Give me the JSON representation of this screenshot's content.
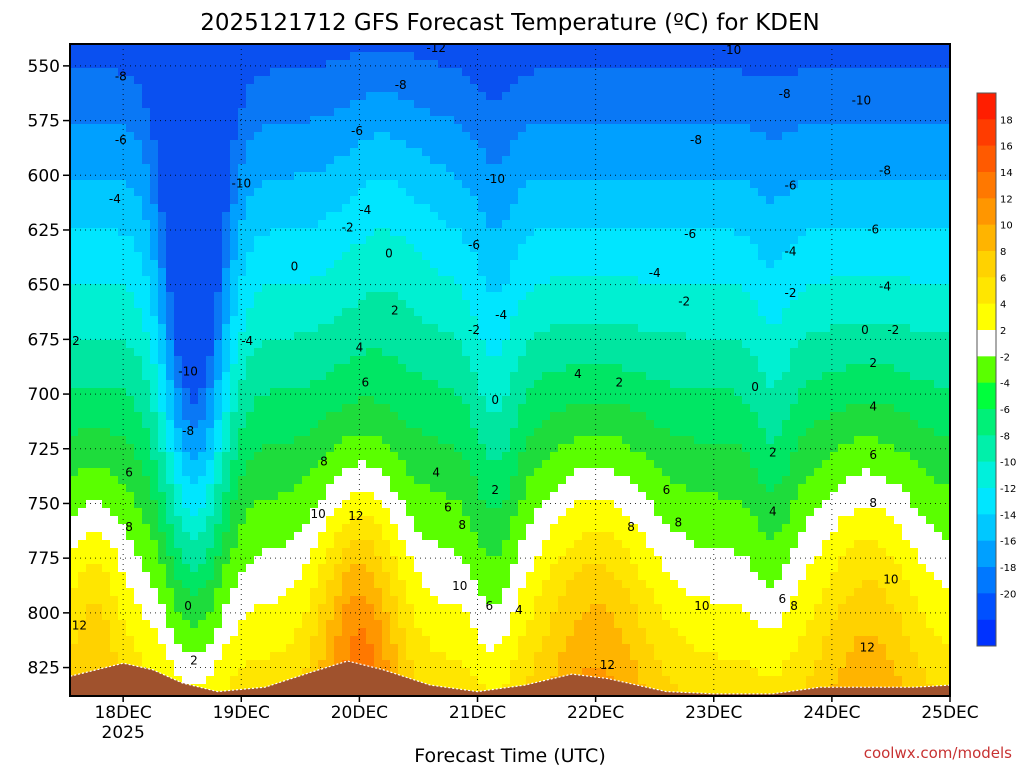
{
  "chart_data": {
    "type": "heatmap",
    "title": "2025121712 GFS Forecast Temperature (ºC) for KDEN",
    "xlabel": "Forecast Time (UTC)",
    "ylabel": "",
    "credit": "coolwx.com/models",
    "x_ticks": [
      {
        "label": "18DEC",
        "sub": "2025",
        "day": 18
      },
      {
        "label": "19DEC",
        "sub": "",
        "day": 19
      },
      {
        "label": "20DEC",
        "sub": "",
        "day": 20
      },
      {
        "label": "21DEC",
        "sub": "",
        "day": 21
      },
      {
        "label": "22DEC",
        "sub": "",
        "day": 22
      },
      {
        "label": "23DEC",
        "sub": "",
        "day": 23
      },
      {
        "label": "24DEC",
        "sub": "",
        "day": 24
      },
      {
        "label": "25DEC",
        "sub": "",
        "day": 25
      }
    ],
    "xlim": [
      17.55,
      25.0
    ],
    "y_ticks": [
      {
        "label": "550",
        "value": 550
      },
      {
        "label": "575",
        "value": 575
      },
      {
        "label": "600",
        "value": 600
      },
      {
        "label": "625",
        "value": 625
      },
      {
        "label": "650",
        "value": 650
      },
      {
        "label": "675",
        "value": 675
      },
      {
        "label": "700",
        "value": 700
      },
      {
        "label": "725",
        "value": 725
      },
      {
        "label": "750",
        "value": 750
      },
      {
        "label": "775",
        "value": 775
      },
      {
        "label": "800",
        "value": 800
      },
      {
        "label": "825",
        "value": 825
      }
    ],
    "ylim": [
      540,
      838
    ],
    "y_inverted": true,
    "grid": true,
    "legend": "right colorbar",
    "colorbar": [
      {
        "label": "18",
        "color": "#ff3c00"
      },
      {
        "label": "16",
        "color": "#ff5a00"
      },
      {
        "label": "14",
        "color": "#ff7800"
      },
      {
        "label": "12",
        "color": "#ff9600"
      },
      {
        "label": "10",
        "color": "#ffb400"
      },
      {
        "label": "8",
        "color": "#ffd200"
      },
      {
        "label": "6",
        "color": "#ffe600"
      },
      {
        "label": "4",
        "color": "#ffff00"
      },
      {
        "label": "2",
        "color": "#ffffff"
      },
      {
        "label": "-2",
        "color": "#5aff00"
      },
      {
        "label": "-4",
        "color": "#00ff3c"
      },
      {
        "label": "-6",
        "color": "#00f078"
      },
      {
        "label": "-8",
        "color": "#00f0aa"
      },
      {
        "label": "-10",
        "color": "#00f0dc"
      },
      {
        "label": "-12",
        "color": "#00e6ff"
      },
      {
        "label": "-14",
        "color": "#00c8ff"
      },
      {
        "label": "-16",
        "color": "#00a0ff"
      },
      {
        "label": "-18",
        "color": "#0078ff"
      },
      {
        "label": "-20",
        "color": "#0050ff"
      }
    ],
    "colorbar_top": "#ff1e00",
    "colorbar_bottom": "#0032ff",
    "palette": {
      "t_neg20": "#0a50f0",
      "t_neg18": "#0a78f5",
      "t_neg16": "#00a0ff",
      "t_neg14": "#00c8ff",
      "t_neg12": "#00e6ff",
      "t_neg10": "#00f0d2",
      "t_neg8": "#00e6a0",
      "t_neg6": "#00e664",
      "t_neg4": "#1edc3c",
      "t_neg2": "#5aff00",
      "t_zero": "#ffffff",
      "t_2": "#ffff00",
      "t_4": "#ffe600",
      "t_6": "#ffd200",
      "t_8": "#ffb400",
      "t_10": "#ff9600",
      "t_12": "#ff7800",
      "t_14": "#ff5a00",
      "t_16": "#ff3c00",
      "terrain": "#a0522d"
    },
    "surface_pressure": [
      {
        "day": 17.55,
        "p": 829
      },
      {
        "day": 18.0,
        "p": 823
      },
      {
        "day": 18.25,
        "p": 826
      },
      {
        "day": 18.5,
        "p": 832
      },
      {
        "day": 18.8,
        "p": 836
      },
      {
        "day": 19.2,
        "p": 834
      },
      {
        "day": 19.6,
        "p": 827
      },
      {
        "day": 19.9,
        "p": 822
      },
      {
        "day": 20.2,
        "p": 826
      },
      {
        "day": 20.6,
        "p": 833
      },
      {
        "day": 21.0,
        "p": 836
      },
      {
        "day": 21.4,
        "p": 833
      },
      {
        "day": 21.8,
        "p": 828
      },
      {
        "day": 22.1,
        "p": 830
      },
      {
        "day": 22.6,
        "p": 836
      },
      {
        "day": 23.0,
        "p": 837
      },
      {
        "day": 23.5,
        "p": 837
      },
      {
        "day": 23.9,
        "p": 834
      },
      {
        "day": 24.3,
        "p": 834
      },
      {
        "day": 24.7,
        "p": 834
      },
      {
        "day": 25.0,
        "p": 833
      }
    ],
    "contour_labels": [
      {
        "text": "-8",
        "day": 17.98,
        "p": 555
      },
      {
        "text": "-6",
        "day": 17.98,
        "p": 584
      },
      {
        "text": "-4",
        "day": 17.93,
        "p": 611
      },
      {
        "text": "2",
        "day": 17.6,
        "p": 676
      },
      {
        "text": "6",
        "day": 18.05,
        "p": 736
      },
      {
        "text": "8",
        "day": 18.05,
        "p": 761
      },
      {
        "text": "12",
        "day": 17.63,
        "p": 806
      },
      {
        "text": "-10",
        "day": 18.55,
        "p": 690
      },
      {
        "text": "-8",
        "day": 18.55,
        "p": 717
      },
      {
        "text": "0",
        "day": 18.55,
        "p": 797
      },
      {
        "text": "2",
        "day": 18.6,
        "p": 822
      },
      {
        "text": "-10",
        "day": 19.0,
        "p": 604
      },
      {
        "text": "-4",
        "day": 19.05,
        "p": 676
      },
      {
        "text": "0",
        "day": 19.45,
        "p": 642
      },
      {
        "text": "-6",
        "day": 19.98,
        "p": 580
      },
      {
        "text": "-4",
        "day": 20.05,
        "p": 616
      },
      {
        "text": "-2",
        "day": 19.9,
        "p": 624
      },
      {
        "text": "0",
        "day": 20.25,
        "p": 636
      },
      {
        "text": "2",
        "day": 20.3,
        "p": 662
      },
      {
        "text": "4",
        "day": 20.0,
        "p": 679
      },
      {
        "text": "6",
        "day": 20.05,
        "p": 695
      },
      {
        "text": "8",
        "day": 19.7,
        "p": 731
      },
      {
        "text": "10",
        "day": 19.65,
        "p": 755
      },
      {
        "text": "12",
        "day": 19.97,
        "p": 756
      },
      {
        "text": "-8",
        "day": 20.35,
        "p": 559
      },
      {
        "text": "-12",
        "day": 20.65,
        "p": 542
      },
      {
        "text": "-10",
        "day": 21.15,
        "p": 602
      },
      {
        "text": "-6",
        "day": 20.97,
        "p": 632
      },
      {
        "text": "-4",
        "day": 21.2,
        "p": 664
      },
      {
        "text": "-2",
        "day": 20.97,
        "p": 671
      },
      {
        "text": "0",
        "day": 21.15,
        "p": 703
      },
      {
        "text": "4",
        "day": 20.65,
        "p": 736
      },
      {
        "text": "2",
        "day": 21.15,
        "p": 744
      },
      {
        "text": "6",
        "day": 20.75,
        "p": 752
      },
      {
        "text": "8",
        "day": 20.87,
        "p": 760
      },
      {
        "text": "10",
        "day": 20.85,
        "p": 788
      },
      {
        "text": "6",
        "day": 21.1,
        "p": 797
      },
      {
        "text": "4",
        "day": 21.35,
        "p": 799
      },
      {
        "text": "4",
        "day": 21.85,
        "p": 691
      },
      {
        "text": "2",
        "day": 22.2,
        "p": 695
      },
      {
        "text": "6",
        "day": 22.6,
        "p": 744
      },
      {
        "text": "8",
        "day": 22.3,
        "p": 761
      },
      {
        "text": "12",
        "day": 22.1,
        "p": 824
      },
      {
        "text": "-8",
        "day": 22.85,
        "p": 584
      },
      {
        "text": "-6",
        "day": 22.8,
        "p": 627
      },
      {
        "text": "-4",
        "day": 22.5,
        "p": 645
      },
      {
        "text": "-2",
        "day": 22.75,
        "p": 658
      },
      {
        "text": "8",
        "day": 22.7,
        "p": 759
      },
      {
        "text": "10",
        "day": 22.9,
        "p": 797
      },
      {
        "text": "-10",
        "day": 23.15,
        "p": 543
      },
      {
        "text": "-8",
        "day": 23.6,
        "p": 563
      },
      {
        "text": "-6",
        "day": 23.65,
        "p": 605
      },
      {
        "text": "-4",
        "day": 23.65,
        "p": 635
      },
      {
        "text": "-2",
        "day": 23.65,
        "p": 654
      },
      {
        "text": "0",
        "day": 23.35,
        "p": 697
      },
      {
        "text": "2",
        "day": 23.5,
        "p": 727
      },
      {
        "text": "4",
        "day": 23.5,
        "p": 754
      },
      {
        "text": "6",
        "day": 23.58,
        "p": 794
      },
      {
        "text": "8",
        "day": 23.68,
        "p": 797
      },
      {
        "text": "-10",
        "day": 24.25,
        "p": 566
      },
      {
        "text": "-8",
        "day": 24.45,
        "p": 598
      },
      {
        "text": "-6",
        "day": 24.35,
        "p": 625
      },
      {
        "text": "-4",
        "day": 24.45,
        "p": 651
      },
      {
        "text": "0",
        "day": 24.28,
        "p": 671
      },
      {
        "text": "-2",
        "day": 24.52,
        "p": 671
      },
      {
        "text": "2",
        "day": 24.35,
        "p": 686
      },
      {
        "text": "4",
        "day": 24.35,
        "p": 706
      },
      {
        "text": "6",
        "day": 24.35,
        "p": 728
      },
      {
        "text": "8",
        "day": 24.35,
        "p": 750
      },
      {
        "text": "10",
        "day": 24.5,
        "p": 785
      },
      {
        "text": "12",
        "day": 24.3,
        "p": 816
      }
    ]
  }
}
